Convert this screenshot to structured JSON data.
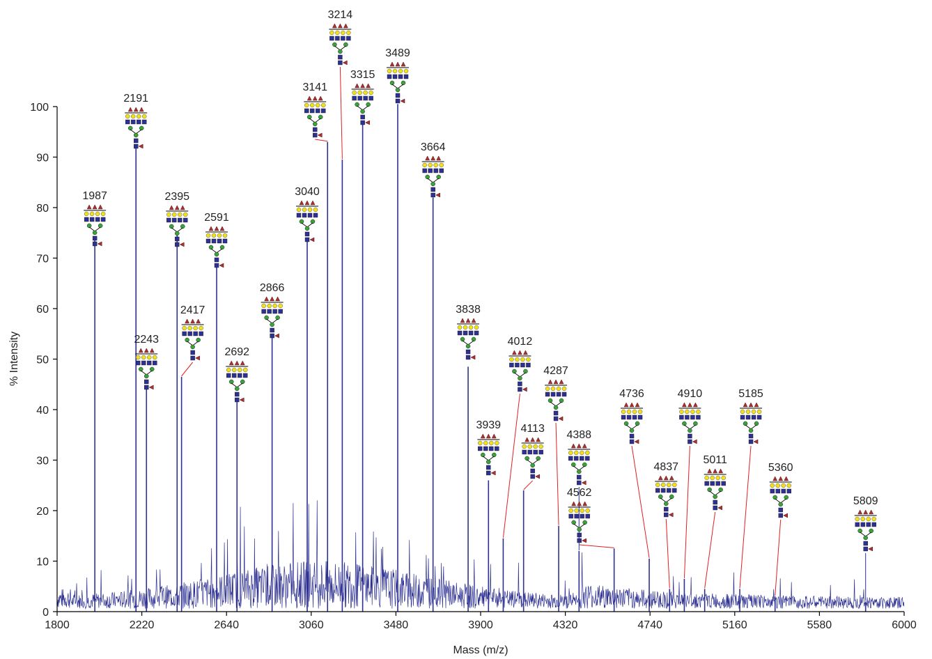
{
  "chart_data": {
    "type": "line",
    "title": "",
    "xlabel": "Mass (m/z)",
    "ylabel": "% Intensity",
    "xlim": [
      1800,
      6000
    ],
    "ylim": [
      0,
      100
    ],
    "x_ticks": [
      1800,
      2220,
      2640,
      3060,
      3480,
      3900,
      4320,
      4740,
      5160,
      5580,
      6000
    ],
    "y_ticks": [
      0,
      10,
      20,
      30,
      40,
      50,
      60,
      70,
      80,
      90,
      100
    ],
    "grid": false,
    "legend": "none",
    "series_color": "#2e3192",
    "label_line_color": "#e02020",
    "peaks": [
      {
        "mz": 1987,
        "intensity": 73.5,
        "label": "1987"
      },
      {
        "mz": 2191,
        "intensity": 92.5,
        "label": "2191"
      },
      {
        "mz": 2243,
        "intensity": 44.0,
        "label": "2243"
      },
      {
        "mz": 2395,
        "intensity": 75.0,
        "label": "2395"
      },
      {
        "mz": 2417,
        "intensity": 46.5,
        "label": "2417"
      },
      {
        "mz": 2591,
        "intensity": 68.5,
        "label": "2591"
      },
      {
        "mz": 2692,
        "intensity": 41.5,
        "label": "2692"
      },
      {
        "mz": 2866,
        "intensity": 55.0,
        "label": "2866"
      },
      {
        "mz": 3040,
        "intensity": 73.5,
        "label": "3040"
      },
      {
        "mz": 3141,
        "intensity": 93.0,
        "label": "3141"
      },
      {
        "mz": 3214,
        "intensity": 89.5,
        "label": "3214"
      },
      {
        "mz": 3315,
        "intensity": 97.0,
        "label": "3315"
      },
      {
        "mz": 3489,
        "intensity": 100.5,
        "label": "3489"
      },
      {
        "mz": 3664,
        "intensity": 82.0,
        "label": "3664"
      },
      {
        "mz": 3838,
        "intensity": 48.5,
        "label": "3838"
      },
      {
        "mz": 3939,
        "intensity": 26.0,
        "label": "3939"
      },
      {
        "mz": 4012,
        "intensity": 14.5,
        "label": "4012"
      },
      {
        "mz": 4113,
        "intensity": 24.0,
        "label": "4113"
      },
      {
        "mz": 4287,
        "intensity": 17.0,
        "label": "4287"
      },
      {
        "mz": 4388,
        "intensity": 12.0,
        "label": "4388"
      },
      {
        "mz": 4562,
        "intensity": 12.5,
        "label": "4562"
      },
      {
        "mz": 4736,
        "intensity": 10.5,
        "label": "4736"
      },
      {
        "mz": 4837,
        "intensity": 4.5,
        "label": "4837"
      },
      {
        "mz": 4910,
        "intensity": 6.5,
        "label": "4910"
      },
      {
        "mz": 5011,
        "intensity": 4.5,
        "label": "5011"
      },
      {
        "mz": 5185,
        "intensity": 4.5,
        "label": "5185"
      },
      {
        "mz": 5360,
        "intensity": 3.0,
        "label": "5360"
      },
      {
        "mz": 5809,
        "intensity": 2.0,
        "label": "5809"
      }
    ]
  }
}
